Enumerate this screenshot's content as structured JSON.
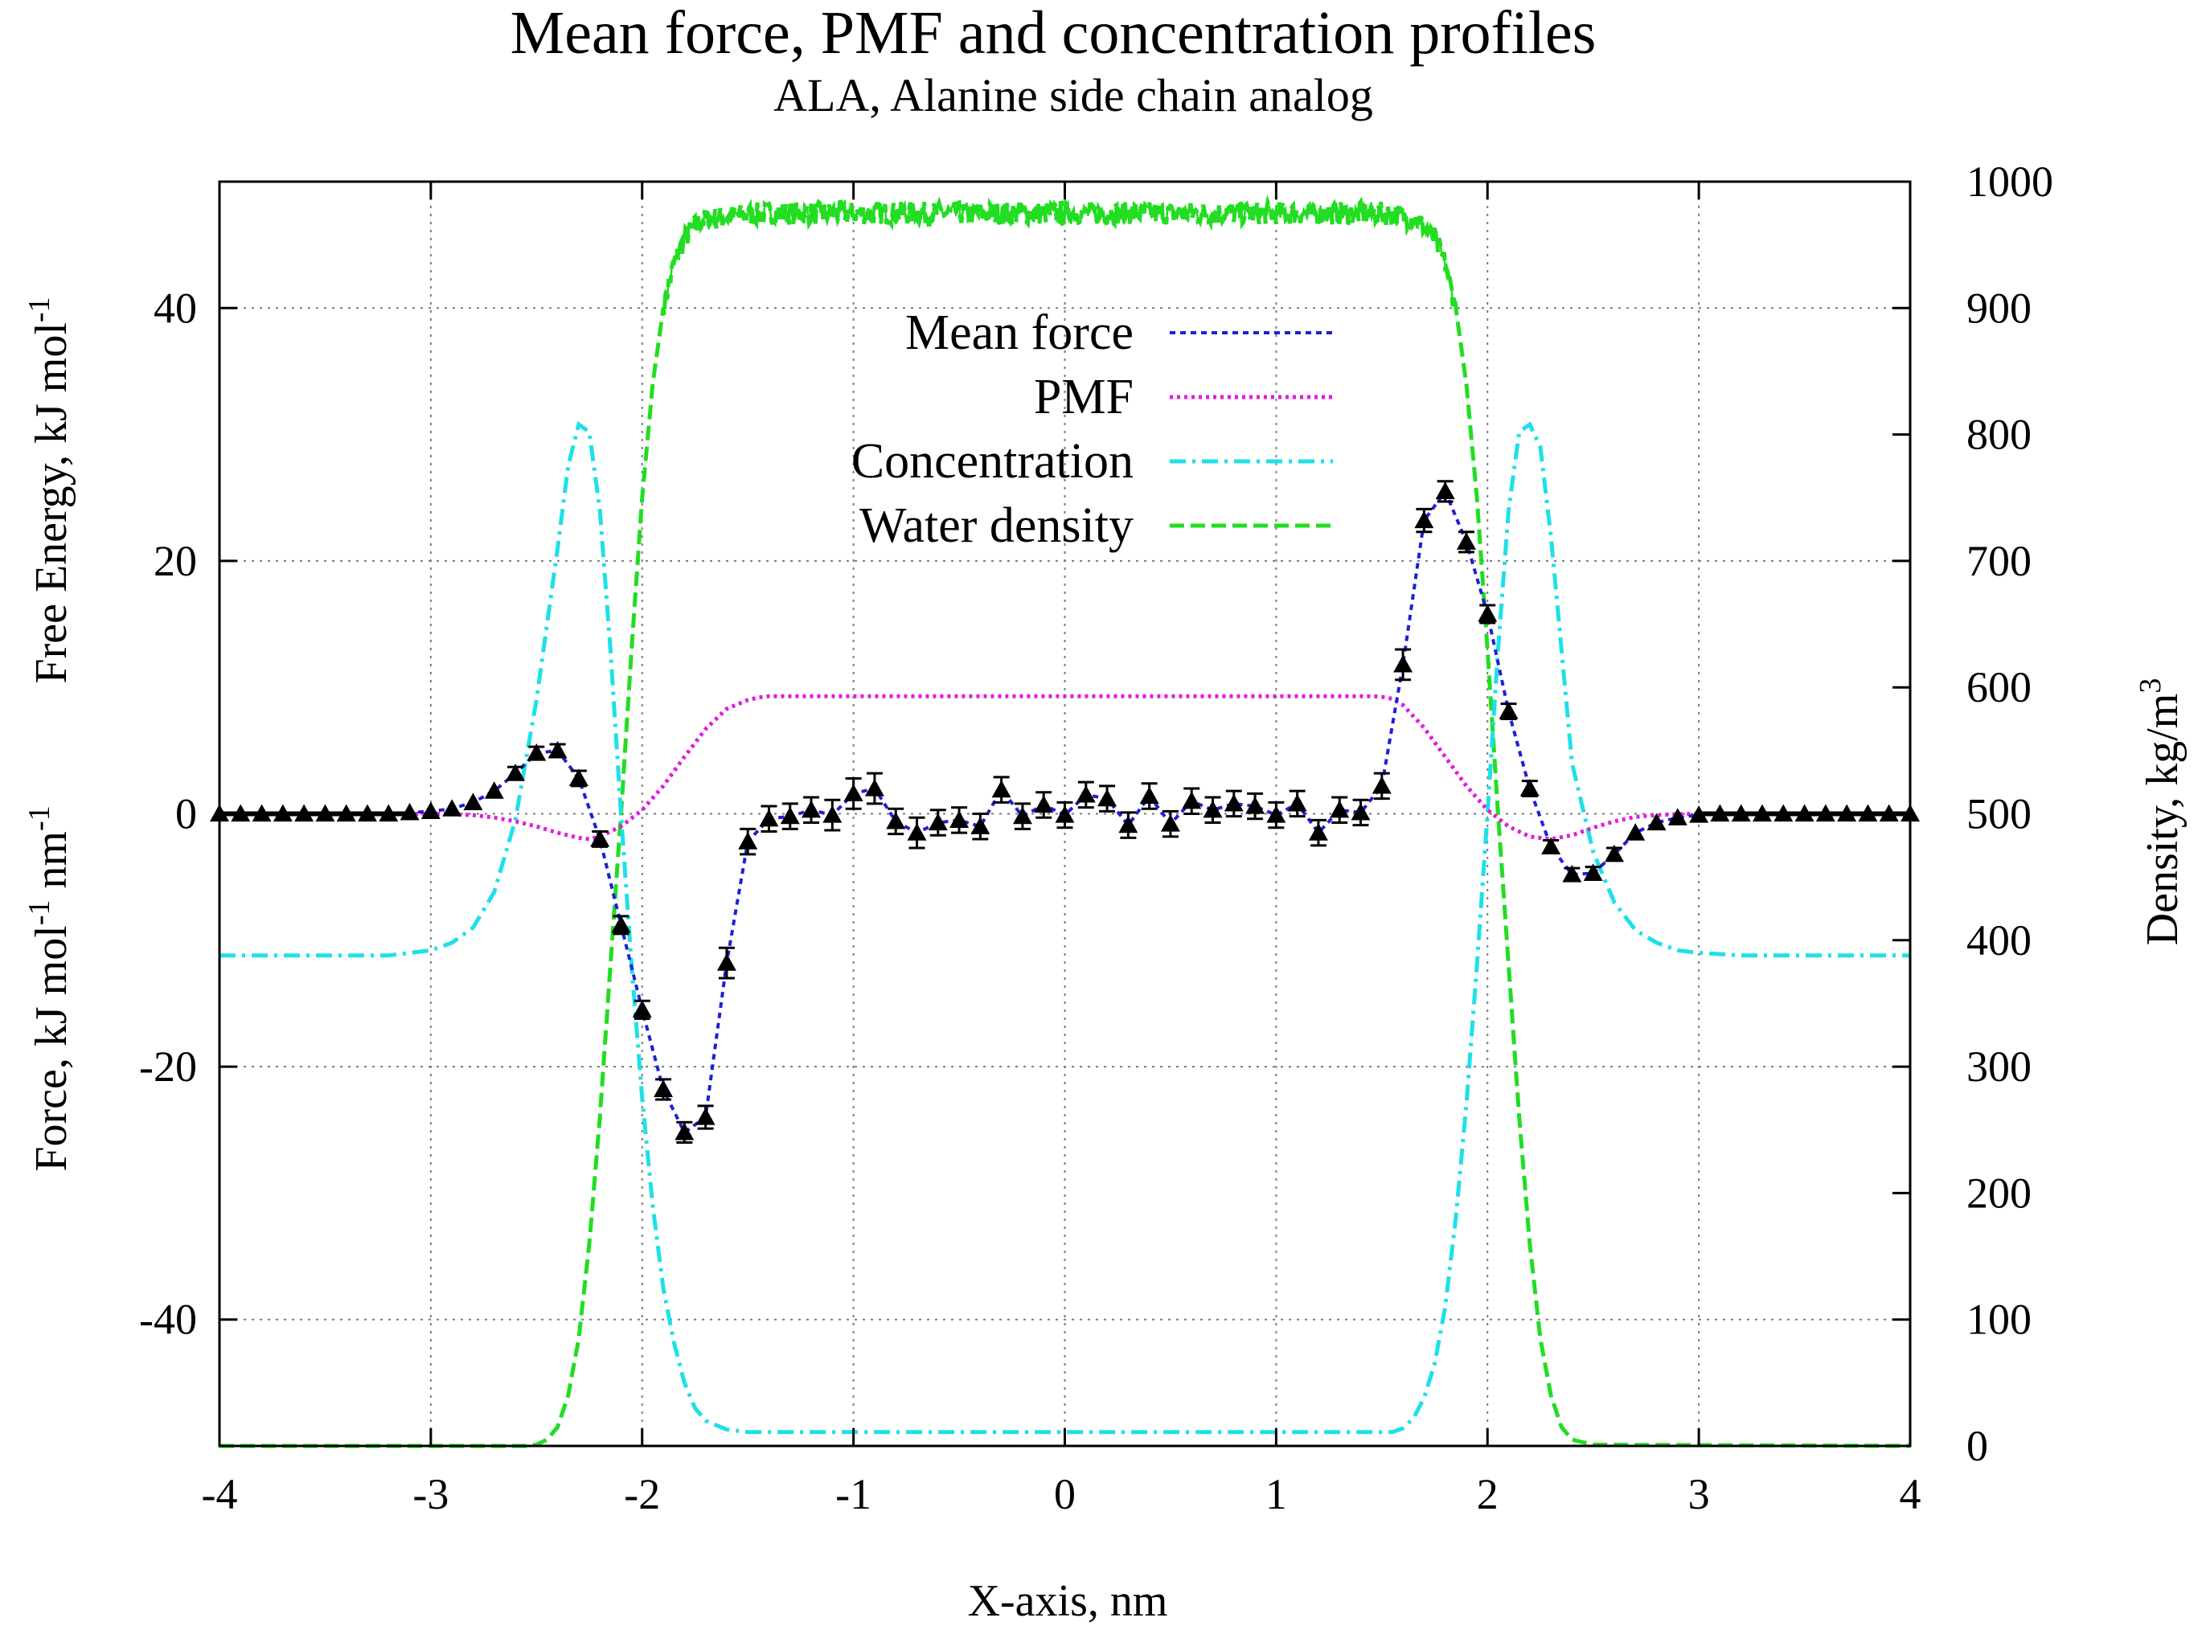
{
  "chart_data": {
    "type": "line",
    "title": "Mean force, PMF and concentration profiles",
    "subtitle": "ALA, Alanine side chain analog",
    "xlabel": "X-axis, nm",
    "ylabel_left": {
      "part1": "Force, kJ mol",
      "sup1": "-1",
      "part2": " nm",
      "sup2": "-1"
    },
    "ylabel_left_top": {
      "text": "Free Energy, kJ mol",
      "sup": "-1"
    },
    "ylabel_right": {
      "text": "Density, kg/m",
      "sup": "3"
    },
    "xlim": [
      -4,
      4
    ],
    "ylim_left": [
      -50,
      50
    ],
    "ylim_right": [
      0,
      1000
    ],
    "xticks": [
      "-4",
      "-3",
      "-2",
      "-1",
      "0",
      "1",
      "2",
      "3",
      "4"
    ],
    "yticks_left": [
      "-40",
      "-20",
      "0",
      "20",
      "40"
    ],
    "yticks_right": [
      "0",
      "100",
      "200",
      "300",
      "400",
      "500",
      "600",
      "700",
      "800",
      "900",
      "1000"
    ],
    "grid": true,
    "legend_position": "top-center",
    "colors": {
      "mean_force": "#1f1fd6",
      "pmf": "#e01ee0",
      "concentration": "#1ee0e8",
      "water_density": "#22dd22",
      "points": "#000000"
    },
    "series": [
      {
        "name": "Mean force",
        "axis": "left",
        "style": "dotted"
      },
      {
        "name": "PMF",
        "axis": "left",
        "style": "dotted"
      },
      {
        "name": "Concentration",
        "axis": "right",
        "style": "dash-dot"
      },
      {
        "name": "Water density",
        "axis": "right",
        "style": "dashed"
      }
    ],
    "force_points": {
      "x": [
        -4.0,
        -3.9,
        -3.8,
        -3.7,
        -3.6,
        -3.5,
        -3.4,
        -3.3,
        -3.2,
        -3.1,
        -3.0,
        -2.9,
        -2.8,
        -2.7,
        -2.6,
        -2.5,
        -2.4,
        -2.3,
        -2.2,
        -2.1,
        -2.0,
        -1.9,
        -1.8,
        -1.7,
        -1.6,
        -1.5,
        -1.4,
        -1.3,
        -1.2,
        -1.1,
        -1.0,
        -0.9,
        -0.8,
        -0.7,
        -0.6,
        -0.5,
        -0.4,
        -0.3,
        -0.2,
        -0.1,
        0.0,
        0.1,
        0.2,
        0.3,
        0.4,
        0.5,
        0.6,
        0.7,
        0.8,
        0.9,
        1.0,
        1.1,
        1.2,
        1.3,
        1.4,
        1.5,
        1.6,
        1.7,
        1.8,
        1.9,
        2.0,
        2.1,
        2.2,
        2.3,
        2.4,
        2.5,
        2.6,
        2.7,
        2.8,
        2.9,
        3.0,
        3.1,
        3.2,
        3.3,
        3.4,
        3.5,
        3.6,
        3.7,
        3.8,
        3.9,
        4.0
      ],
      "y": [
        0,
        0,
        0,
        0,
        0,
        0,
        0,
        0,
        0,
        0.1,
        0.2,
        0.4,
        0.9,
        1.8,
        3.2,
        4.8,
        5.0,
        2.8,
        -2.0,
        -8.8,
        -15.5,
        -21.8,
        -25.2,
        -24.0,
        -11.8,
        -2.2,
        -0.4,
        -0.2,
        0.3,
        -0.1,
        1.6,
        2.0,
        -0.6,
        -1.5,
        -0.7,
        -0.5,
        -1.0,
        1.9,
        -0.2,
        0.7,
        -0.1,
        1.5,
        1.2,
        -0.9,
        1.4,
        -0.8,
        1.0,
        0.3,
        0.8,
        0.6,
        -0.1,
        0.8,
        -1.5,
        0.3,
        0.1,
        2.2,
        11.8,
        23.2,
        25.5,
        21.5,
        15.8,
        8.1,
        2.0,
        -2.6,
        -4.8,
        -4.7,
        -3.2,
        -1.5,
        -0.7,
        -0.3,
        -0.1,
        0,
        0,
        0,
        0,
        0,
        0,
        0,
        0,
        0,
        0
      ],
      "err": [
        0.2,
        0.2,
        0.2,
        0.2,
        0.2,
        0.2,
        0.2,
        0.2,
        0.2,
        0.2,
        0.2,
        0.3,
        0.3,
        0.4,
        0.5,
        0.5,
        0.5,
        0.6,
        0.6,
        0.7,
        0.7,
        0.8,
        0.8,
        0.9,
        1.2,
        1.0,
        1.0,
        1.0,
        1.0,
        1.2,
        1.2,
        1.2,
        1.0,
        1.2,
        1.0,
        1.0,
        1.0,
        1.0,
        1.0,
        1.0,
        1.0,
        1.0,
        1.0,
        1.0,
        1.0,
        1.0,
        1.0,
        1.0,
        1.0,
        1.0,
        1.0,
        1.0,
        1.0,
        1.0,
        1.0,
        1.0,
        1.2,
        0.9,
        0.8,
        0.8,
        0.7,
        0.6,
        0.6,
        0.5,
        0.5,
        0.5,
        0.5,
        0.4,
        0.3,
        0.3,
        0.2,
        0.2,
        0.2,
        0.2,
        0.2,
        0.2,
        0.2,
        0.2,
        0.2,
        0.2,
        0.2
      ]
    },
    "pmf_curve": {
      "x": [
        -4.0,
        -3.0,
        -2.9,
        -2.8,
        -2.7,
        -2.6,
        -2.5,
        -2.4,
        -2.3,
        -2.25,
        -2.2,
        -2.1,
        -2.0,
        -1.9,
        -1.8,
        -1.7,
        -1.6,
        -1.5,
        -1.45,
        -1.4,
        1.45,
        1.5,
        1.55,
        1.6,
        1.7,
        1.8,
        1.9,
        2.0,
        2.1,
        2.2,
        2.3,
        2.4,
        2.5,
        2.6,
        2.7,
        2.8,
        2.9,
        3.0,
        4.0
      ],
      "y": [
        0,
        0,
        -0.03,
        -0.1,
        -0.3,
        -0.6,
        -1.0,
        -1.5,
        -1.9,
        -2.0,
        -1.8,
        -1.0,
        0.3,
        2.2,
        4.5,
        6.7,
        8.3,
        9.0,
        9.2,
        9.3,
        9.3,
        9.25,
        9.1,
        8.6,
        6.8,
        4.5,
        2.2,
        0.3,
        -1.0,
        -1.8,
        -2.0,
        -1.7,
        -1.1,
        -0.6,
        -0.25,
        -0.1,
        -0.03,
        0,
        0
      ]
    },
    "concentration_curve": {
      "x": [
        -4.0,
        -3.2,
        -3.0,
        -2.9,
        -2.8,
        -2.7,
        -2.6,
        -2.5,
        -2.4,
        -2.35,
        -2.3,
        -2.25,
        -2.2,
        -2.15,
        -2.1,
        -2.05,
        -2.0,
        -1.95,
        -1.9,
        -1.85,
        -1.8,
        -1.75,
        -1.7,
        -1.6,
        -1.5,
        1.55,
        1.6,
        1.65,
        1.7,
        1.75,
        1.8,
        1.85,
        1.9,
        1.95,
        2.0,
        2.05,
        2.1,
        2.15,
        2.2,
        2.25,
        2.3,
        2.35,
        2.4,
        2.5,
        2.6,
        2.7,
        2.8,
        2.9,
        3.0,
        3.2,
        4.0
      ],
      "y": [
        388,
        388,
        392,
        398,
        410,
        438,
        495,
        590,
        710,
        775,
        808,
        802,
        740,
        630,
        500,
        380,
        275,
        190,
        125,
        82,
        50,
        30,
        20,
        13,
        11,
        11,
        14,
        22,
        38,
        65,
        110,
        180,
        270,
        380,
        500,
        630,
        740,
        802,
        808,
        790,
        720,
        630,
        540,
        470,
        430,
        408,
        398,
        392,
        390,
        388,
        388
      ]
    },
    "water_density_curve": {
      "x": [
        -4.0,
        -2.55,
        -2.5,
        -2.45,
        -2.4,
        -2.35,
        -2.3,
        -2.25,
        -2.2,
        -2.15,
        -2.1,
        -2.05,
        -2.0,
        -1.95,
        -1.9,
        -1.85,
        -1.8,
        -1.75,
        -1.7,
        -1.6,
        -1.5,
        -1.4,
        1.5,
        1.6,
        1.65,
        1.7,
        1.75,
        1.8,
        1.85,
        1.9,
        1.95,
        2.0,
        2.05,
        2.1,
        2.15,
        2.2,
        2.25,
        2.3,
        2.35,
        2.4,
        2.5,
        4.0
      ],
      "y": [
        0,
        0,
        1,
        5,
        15,
        40,
        85,
        160,
        260,
        380,
        500,
        630,
        750,
        840,
        900,
        935,
        955,
        965,
        970,
        972,
        974,
        975,
        975,
        973,
        970,
        965,
        955,
        935,
        900,
        840,
        750,
        630,
        500,
        380,
        260,
        160,
        85,
        40,
        15,
        5,
        1,
        0
      ],
      "noise_amplitude": 9
    }
  }
}
